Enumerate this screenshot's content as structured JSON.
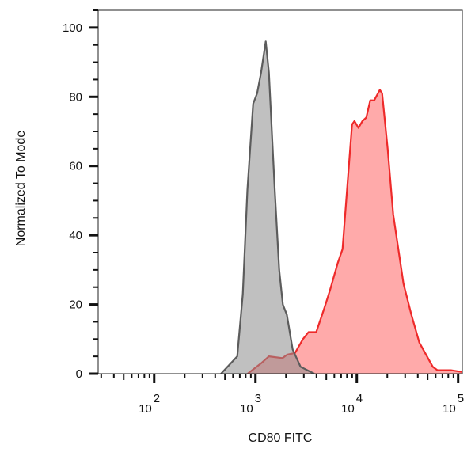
{
  "chart_data": {
    "type": "area",
    "title": "",
    "xlabel": "CD80 FITC",
    "ylabel": "Normalized To Mode",
    "x_scale": "log",
    "xlim": [
      28,
      110000
    ],
    "ylim": [
      0,
      105
    ],
    "x_ticks": [
      {
        "base": "10",
        "exp": "2",
        "value": 100
      },
      {
        "base": "10",
        "exp": "3",
        "value": 1000
      },
      {
        "base": "10",
        "exp": "4",
        "value": 10000
      },
      {
        "base": "10",
        "exp": "5",
        "value": 100000
      }
    ],
    "y_ticks": [
      "0",
      "20",
      "40",
      "60",
      "80",
      "100"
    ],
    "grid": false,
    "legend": "none",
    "series": [
      {
        "fill": "#ffaaaa",
        "stroke": "#ee2a2a",
        "x": [
          836,
          1135,
          1358,
          1845,
          2053,
          2455,
          2942,
          3338,
          3981,
          4786,
          5420,
          6494,
          7228,
          8204,
          8977,
          9480,
          10380,
          11350,
          12410,
          13580,
          14860,
          16870,
          17780,
          20180,
          22870,
          28910,
          34600,
          41400,
          56230,
          62660,
          85110,
          109600
        ],
        "y": [
          0,
          3,
          5,
          4.5,
          5.5,
          6,
          10,
          12,
          12,
          19,
          24,
          32,
          36,
          57,
          72,
          73,
          71,
          73,
          74,
          79,
          79,
          82,
          81,
          65,
          46,
          26,
          17,
          9,
          2,
          1,
          1,
          0.5
        ]
      },
      {
        "fill": "rgba(140,140,140,0.55)",
        "stroke": "#5c5c5c",
        "x": [
          457,
          661,
          750,
          832,
          948,
          1037,
          1135,
          1263,
          1358,
          1549,
          1714,
          1862,
          2042,
          2328,
          2786,
          3802
        ],
        "y": [
          0,
          5,
          23,
          53,
          78,
          81,
          87,
          96,
          87,
          53,
          30,
          20,
          17,
          7,
          2,
          0
        ]
      }
    ]
  }
}
